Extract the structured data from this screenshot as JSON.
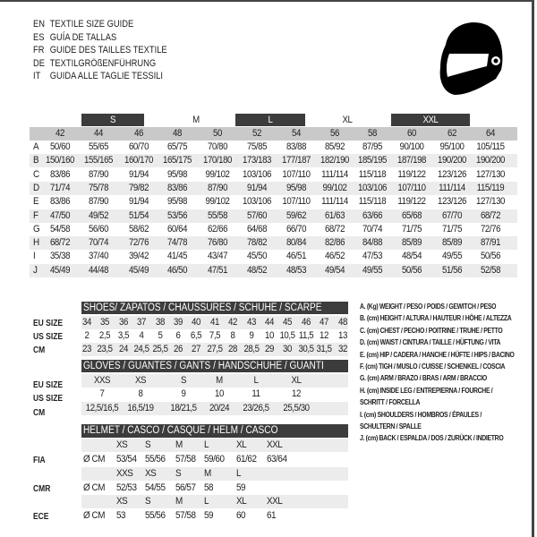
{
  "titles": [
    {
      "code": "EN",
      "text": "TEXTILE SIZE GUIDE"
    },
    {
      "code": "ES",
      "text": "GUÍA DE TALLAS"
    },
    {
      "code": "FR",
      "text": "GUIDE DES TAILLES TEXTILE"
    },
    {
      "code": "DE",
      "text": "TEXTILGRÖßENFÜHRUNG"
    },
    {
      "code": "IT",
      "text": "GUIDA ALLE TAGLIE TESSILI"
    }
  ],
  "icon": "helmet-icon",
  "textile": {
    "size_groups": [
      "S",
      "M",
      "L",
      "XL",
      "XXL"
    ],
    "sizes": [
      "42",
      "44",
      "46",
      "48",
      "50",
      "52",
      "54",
      "56",
      "58",
      "60",
      "62",
      "64"
    ],
    "rows": [
      {
        "label": "A",
        "values": [
          "50/60",
          "55/65",
          "60/70",
          "65/75",
          "70/80",
          "75/85",
          "83/88",
          "85/92",
          "87/95",
          "90/100",
          "95/100",
          "105/115"
        ]
      },
      {
        "label": "B",
        "values": [
          "150/160",
          "155/165",
          "160/170",
          "165/175",
          "170/180",
          "173/183",
          "177/187",
          "182/190",
          "185/195",
          "187/198",
          "190/200",
          "190/200"
        ]
      },
      {
        "label": "C",
        "values": [
          "83/86",
          "87/90",
          "91/94",
          "95/98",
          "99/102",
          "103/106",
          "107/110",
          "111/114",
          "115/118",
          "119/122",
          "123/126",
          "127/130"
        ]
      },
      {
        "label": "D",
        "values": [
          "71/74",
          "75/78",
          "79/82",
          "83/86",
          "87/90",
          "91/94",
          "95/98",
          "99/102",
          "103/106",
          "107/110",
          "111/114",
          "115/119"
        ]
      },
      {
        "label": "E",
        "values": [
          "83/86",
          "87/90",
          "91/94",
          "95/98",
          "99/102",
          "103/106",
          "107/110",
          "111/114",
          "115/118",
          "119/122",
          "123/126",
          "127/130"
        ]
      },
      {
        "label": "F",
        "values": [
          "47/50",
          "49/52",
          "51/54",
          "53/56",
          "55/58",
          "57/60",
          "59/62",
          "61/63",
          "63/66",
          "65/68",
          "67/70",
          "68/72"
        ]
      },
      {
        "label": "G",
        "values": [
          "54/58",
          "56/60",
          "58/62",
          "60/64",
          "62/66",
          "64/68",
          "66/70",
          "68/72",
          "70/74",
          "71/75",
          "71/75",
          "72/76"
        ]
      },
      {
        "label": "H",
        "values": [
          "68/72",
          "70/74",
          "72/76",
          "74/78",
          "76/80",
          "78/82",
          "80/84",
          "82/86",
          "84/88",
          "85/89",
          "85/89",
          "87/91"
        ]
      },
      {
        "label": "I",
        "values": [
          "35/38",
          "37/40",
          "39/42",
          "41/45",
          "43/47",
          "45/50",
          "46/51",
          "46/52",
          "47/53",
          "48/54",
          "49/55",
          "50/56"
        ]
      },
      {
        "label": "J",
        "values": [
          "45/49",
          "44/48",
          "45/49",
          "46/50",
          "47/51",
          "48/52",
          "48/53",
          "49/54",
          "49/55",
          "50/56",
          "51/56",
          "52/58"
        ]
      }
    ]
  },
  "shoes": {
    "title": "SHOES/ ZAPATOS / CHAUSSURES / SCHUHE / SCARPE",
    "rows": [
      {
        "label": "EU SIZE",
        "values": [
          "34",
          "35",
          "36",
          "37",
          "38",
          "39",
          "40",
          "41",
          "42",
          "43",
          "44",
          "45",
          "46",
          "47",
          "48"
        ]
      },
      {
        "label": "US SIZE",
        "values": [
          "2",
          "2,5",
          "3,5",
          "4",
          "5",
          "6",
          "6,5",
          "7,5",
          "8",
          "9",
          "10",
          "10,5",
          "11,5",
          "12",
          "13"
        ]
      },
      {
        "label": "CM",
        "values": [
          "23",
          "23,5",
          "24",
          "24,5",
          "25,5",
          "26",
          "27",
          "27,5",
          "28",
          "28,5",
          "29",
          "30",
          "30,5",
          "31,5",
          "32"
        ]
      }
    ]
  },
  "gloves": {
    "title": "GLOVES / GUANTES / GANTS / HANDSCHUHE / GUANTI",
    "rows": [
      {
        "label": "EU SIZE",
        "values": [
          "XXS",
          "XS",
          "S",
          "M",
          "L",
          "XL"
        ]
      },
      {
        "label": "US SIZE",
        "values": [
          "7",
          "8",
          "9",
          "10",
          "11",
          "12"
        ]
      },
      {
        "label": "CM",
        "values": [
          "12,5/16,5",
          "16,5/19",
          "18/21,5",
          "20/24",
          "23/26,5",
          "25,5/30"
        ]
      }
    ]
  },
  "helmet": {
    "title": "HELMET / CASCO / CASQUE / HELM / CASCO",
    "unit": "Ø CM",
    "standards": [
      {
        "label": "FIA",
        "sizes": [
          "XS",
          "S",
          "M",
          "L",
          "XL",
          "XXL"
        ],
        "values": [
          "53/54",
          "55/56",
          "57/58",
          "59/60",
          "61/62",
          "63/64"
        ]
      },
      {
        "label": "CMR",
        "sizes": [
          "XXS",
          "XS",
          "S",
          "M",
          "L"
        ],
        "values": [
          "52/53",
          "54/55",
          "56/57",
          "58",
          "59"
        ]
      },
      {
        "label": "ECE",
        "sizes": [
          "XS",
          "S",
          "M",
          "L",
          "XL",
          "XXL"
        ],
        "values": [
          "53",
          "55/56",
          "57/58",
          "59",
          "60",
          "61"
        ]
      }
    ]
  },
  "legend": [
    "A. (Kg) WEIGHT / PESO / POIDS / GEWITCH / PESO",
    "B. (cm) HEIGHT / ALTURA / HAUTEUR / HÖHE / ALTEZZA",
    "C. (cm) CHEST / PECHO / POITRINE / TRUHE / PETTO",
    "D. (cm) WAIST / CINTURA / TAILLE / HÜFTUNG / VITA",
    "E. (cm) HIP / CADERA / HANCHE / HÜFTE / HIPS /  BACINO",
    "F.  (cm) TIGH / MUSLO / CUISSE / SCHENKEL / COSCIA",
    "G. (cm) ARM  / BRAZO / BRAS / ARM / BRACCIO",
    "H. (cm) INSIDE LEG / ENTREPIERNA / FOURCHE /",
    "SCHRITT / FORCELLA",
    "I.  (cm) SHOULDERS / HOMBROS / ÉPAULES /",
    "SCHULTERN / SPALLE",
    "J. (cm) BACK / ESPALDA / DOS / ZURÜCK / INDIETRO"
  ]
}
